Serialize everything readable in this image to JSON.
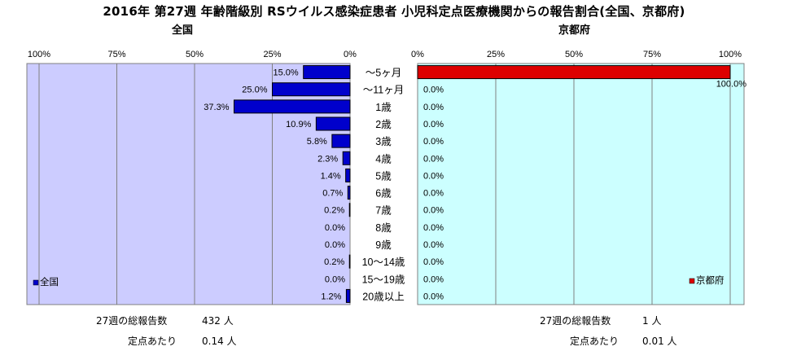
{
  "title": "2016年 第27週 年齢階級別 RSウイルス感染症患者 小児科定点医療機関からの報告割合(全国、京都府)",
  "colors": {
    "plot_bg": "#ccccff",
    "plot_bg_right": "#ccffff",
    "national_bar": "#0000cc",
    "kyoto_bar": "#dd0000",
    "grid": "#808080"
  },
  "chart_data": [
    {
      "panel": "全国",
      "type": "bar",
      "orientation": "horizontal",
      "direction": "right-to-left",
      "categories": [
        "～5ヶ月",
        "～11ヶ月",
        "1歳",
        "2歳",
        "3歳",
        "4歳",
        "5歳",
        "6歳",
        "7歳",
        "8歳",
        "9歳",
        "10～14歳",
        "15～19歳",
        "20歳以上"
      ],
      "series": [
        {
          "name": "全国",
          "values": [
            15.0,
            25.0,
            37.3,
            10.9,
            5.8,
            2.3,
            1.4,
            0.7,
            0.2,
            0.0,
            0.0,
            0.2,
            0.0,
            1.2
          ]
        }
      ],
      "value_labels": [
        "15.0%",
        "25.0%",
        "37.3%",
        "10.9%",
        "5.8%",
        "2.3%",
        "1.4%",
        "0.7%",
        "0.2%",
        "0.0%",
        "0.0%",
        "0.2%",
        "0.0%",
        "1.2%"
      ],
      "xlim": [
        0,
        100
      ],
      "ticks": [
        "100%",
        "75%",
        "50%",
        "25%",
        "0%"
      ],
      "legend": "bottom-left",
      "grid": true
    },
    {
      "panel": "京都府",
      "type": "bar",
      "orientation": "horizontal",
      "direction": "left-to-right",
      "categories": [
        "～5ヶ月",
        "～11ヶ月",
        "1歳",
        "2歳",
        "3歳",
        "4歳",
        "5歳",
        "6歳",
        "7歳",
        "8歳",
        "9歳",
        "10～14歳",
        "15～19歳",
        "20歳以上"
      ],
      "series": [
        {
          "name": "京都府",
          "values": [
            100.0,
            0.0,
            0.0,
            0.0,
            0.0,
            0.0,
            0.0,
            0.0,
            0.0,
            0.0,
            0.0,
            0.0,
            0.0,
            0.0
          ]
        }
      ],
      "value_labels": [
        "100.0%",
        "0.0%",
        "0.0%",
        "0.0%",
        "0.0%",
        "0.0%",
        "0.0%",
        "0.0%",
        "0.0%",
        "0.0%",
        "0.0%",
        "0.0%",
        "0.0%",
        "0.0%"
      ],
      "xlim": [
        0,
        100
      ],
      "ticks": [
        "0%",
        "25%",
        "50%",
        "75%",
        "100%"
      ],
      "legend": "bottom-right",
      "grid": true
    }
  ],
  "footer": {
    "national": {
      "total_label": "27週の総報告数",
      "total_value": "432 人",
      "per_label": "定点あたり",
      "per_value": "0.14 人"
    },
    "kyoto": {
      "total_label": "27週の総報告数",
      "total_value": "1 人",
      "per_label": "定点あたり",
      "per_value": "0.01 人"
    }
  }
}
